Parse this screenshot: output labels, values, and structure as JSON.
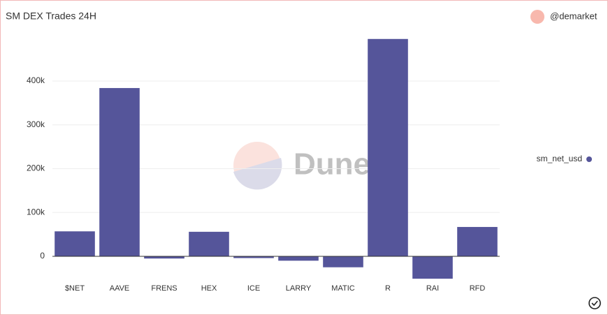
{
  "chart_data": {
    "type": "bar",
    "title": "SM DEX Trades 24H",
    "author": "@demarket",
    "watermark": "Dune",
    "categories": [
      "$NET",
      "AAVE",
      "FRENS",
      "HEX",
      "ICE",
      "LARRY",
      "MATIC",
      "R",
      "RAI",
      "RFD"
    ],
    "series": [
      {
        "name": "sm_net_usd",
        "color": "#55559a",
        "values": [
          57000,
          384000,
          -5000,
          56000,
          -4000,
          -10000,
          -25000,
          496000,
          -51000,
          67000
        ]
      }
    ],
    "ylim": [
      -55000,
      510000
    ],
    "yticks": [
      0,
      {
        "value": 100000,
        "label": "100k"
      },
      {
        "value": 200000,
        "label": "200k"
      },
      {
        "value": 300000,
        "label": "300k"
      },
      {
        "value": 400000,
        "label": "400k"
      }
    ],
    "grid": true,
    "legend": "right"
  }
}
